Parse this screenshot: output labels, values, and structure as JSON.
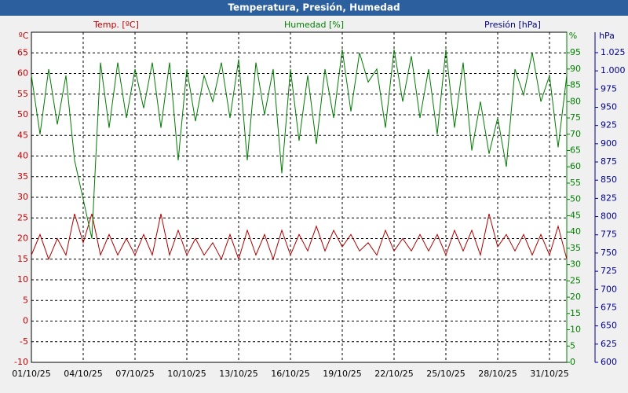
{
  "chart_data": {
    "type": "line",
    "title": "Temperatura, Presión, Humedad",
    "y_unit": "ºC",
    "y2_unit": "%",
    "y3_unit": "hPa",
    "y_label": "Temp. [ºC]",
    "y2_label": "Humedad [%]",
    "y3_label": "Presión [hPa]",
    "xlim": [
      0,
      31
    ],
    "xticks": [
      {
        "value": 0,
        "label": "01/10/25"
      },
      {
        "value": 3,
        "label": "04/10/25"
      },
      {
        "value": 6,
        "label": "07/10/25"
      },
      {
        "value": 9,
        "label": "10/10/25"
      },
      {
        "value": 12,
        "label": "13/10/25"
      },
      {
        "value": 15,
        "label": "16/10/25"
      },
      {
        "value": 18,
        "label": "19/10/25"
      },
      {
        "value": 21,
        "label": "22/10/25"
      },
      {
        "value": 24,
        "label": "25/10/25"
      },
      {
        "value": 27,
        "label": "28/10/25"
      },
      {
        "value": 30,
        "label": "31/10/25"
      }
    ],
    "ylim": [
      -10,
      70
    ],
    "yticks": [
      -10,
      -5,
      0,
      5,
      10,
      15,
      20,
      25,
      30,
      35,
      40,
      45,
      50,
      55,
      60,
      65
    ],
    "y2lim": [
      0,
      101.3
    ],
    "y2ticks": [
      0,
      5,
      10,
      15,
      20,
      25,
      30,
      35,
      40,
      45,
      50,
      55,
      60,
      65,
      70,
      75,
      80,
      85,
      90,
      95
    ],
    "y3lim": [
      600,
      1053
    ],
    "y3ticks": [
      600,
      625,
      650,
      675,
      700,
      725,
      750,
      775,
      800,
      825,
      850,
      875,
      900,
      925,
      950,
      975,
      {
        "value": 1000,
        "label": "1.000"
      },
      {
        "value": 1025,
        "label": "1.025"
      }
    ],
    "y_color": "#c00000",
    "y2_color": "#008000",
    "y3_color": "#00008b",
    "grid": true,
    "x": [
      0,
      0.5,
      1,
      1.5,
      2,
      2.5,
      3,
      3.5,
      4,
      4.5,
      5,
      5.5,
      6,
      6.5,
      7,
      7.5,
      8,
      8.5,
      9,
      9.5,
      10,
      10.5,
      11,
      11.5,
      12,
      12.5,
      13,
      13.5,
      14,
      14.5,
      15,
      15.5,
      16,
      16.5,
      17,
      17.5,
      18,
      18.5,
      19,
      19.5,
      20,
      20.5,
      21,
      21.5,
      22,
      22.5,
      23,
      23.5,
      24,
      24.5,
      25,
      25.5,
      26,
      26.5,
      27,
      27.5,
      28,
      28.5,
      29,
      29.5,
      30,
      30.5,
      31
    ],
    "series": [
      {
        "name": "Temp. [ºC]",
        "color": "#b00000",
        "axis": "y",
        "values": [
          16,
          21,
          15,
          20,
          16,
          26,
          19,
          26,
          16,
          21,
          16,
          20,
          16,
          21,
          16,
          26,
          16,
          22,
          16,
          20,
          16,
          19,
          15,
          21,
          15,
          22,
          16,
          21,
          15,
          22,
          16,
          21,
          17,
          23,
          17,
          22,
          18,
          21,
          17,
          19,
          16,
          22,
          17,
          20,
          17,
          21,
          17,
          21,
          16,
          22,
          17,
          22,
          16,
          26,
          18,
          21,
          17,
          21,
          16,
          21,
          16,
          23,
          15
        ]
      },
      {
        "name": "Humedad [%]",
        "color": "#007a00",
        "axis": "y2",
        "values": [
          88,
          70,
          90,
          73,
          88,
          62,
          50,
          38,
          92,
          72,
          92,
          75,
          90,
          78,
          92,
          72,
          92,
          62,
          90,
          74,
          88,
          80,
          92,
          75,
          93,
          62,
          92,
          76,
          90,
          58,
          90,
          68,
          88,
          67,
          90,
          75,
          96,
          77,
          95,
          86,
          90,
          72,
          96,
          80,
          94,
          75,
          90,
          70,
          96,
          72,
          92,
          65,
          80,
          64,
          75,
          60,
          90,
          82,
          95,
          80,
          88,
          66,
          88
        ]
      }
    ]
  }
}
